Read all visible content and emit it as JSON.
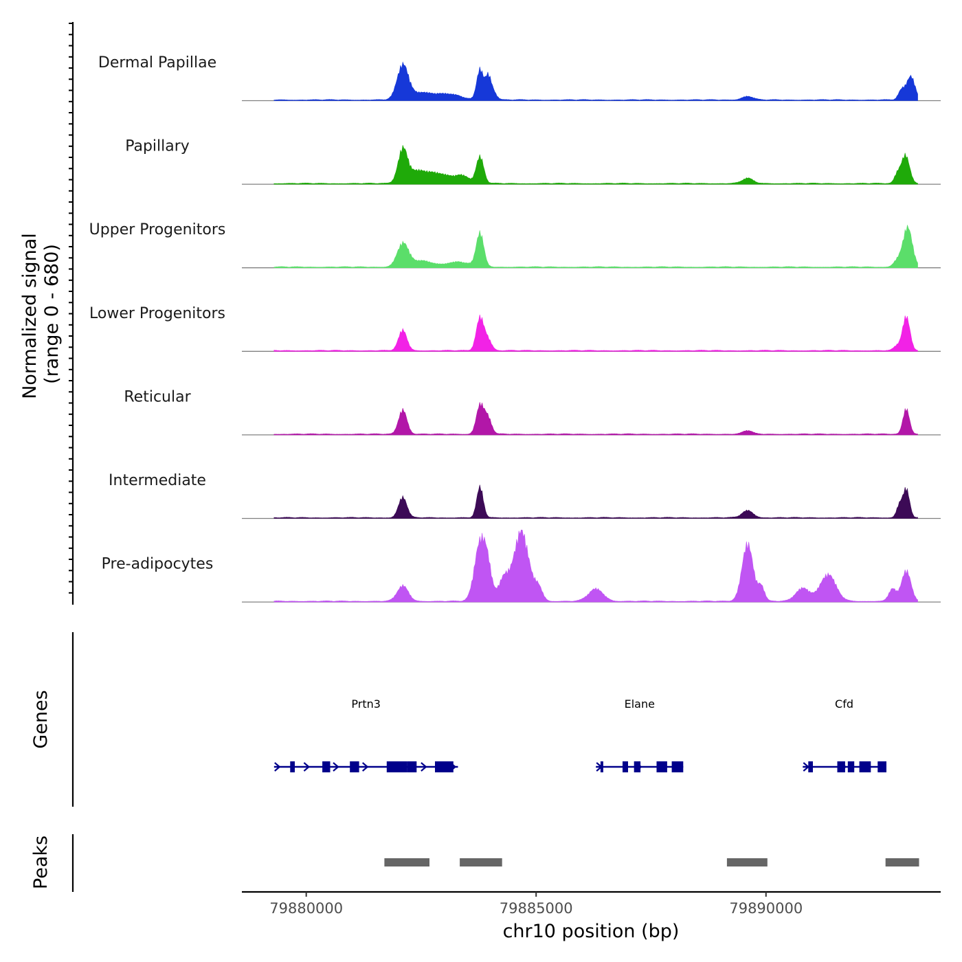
{
  "chart_data": {
    "type": "area",
    "chromosome": "chr10",
    "xlabel": "chr10 position (bp)",
    "ylabel_line1": "Normalized signal",
    "ylabel_line2": "(range 0 - 680)",
    "ylim": [
      0,
      680
    ],
    "xlim": [
      79878600,
      79893800
    ],
    "x_ticks": [
      79880000,
      79885000,
      79890000
    ],
    "x_tick_labels": [
      "79880000",
      "79885000",
      "79890000"
    ],
    "signal_range": [
      79879300,
      79893300
    ],
    "tracks": [
      {
        "name": "Dermal Papillae",
        "color": "#1638D8",
        "peaks": [
          [
            79882100,
            330,
            120
          ],
          [
            79882500,
            70,
            250
          ],
          [
            79883100,
            55,
            260
          ],
          [
            79883780,
            300,
            70
          ],
          [
            79883950,
            200,
            60
          ],
          [
            79884050,
            90,
            80
          ],
          [
            79889600,
            35,
            120
          ],
          [
            79892950,
            90,
            70
          ],
          [
            79893150,
            230,
            90
          ]
        ]
      },
      {
        "name": "Papillary",
        "color": "#1FAA09",
        "peaks": [
          [
            79882100,
            310,
            100
          ],
          [
            79882400,
            110,
            220
          ],
          [
            79882900,
            90,
            260
          ],
          [
            79883780,
            260,
            80
          ],
          [
            79883400,
            70,
            150
          ],
          [
            79889600,
            50,
            120
          ],
          [
            79893030,
            280,
            90
          ],
          [
            79892850,
            80,
            60
          ]
        ]
      },
      {
        "name": "Upper Progenitors",
        "color": "#5BDE6A",
        "peaks": [
          [
            79882100,
            220,
            120
          ],
          [
            79882500,
            60,
            250
          ],
          [
            79883780,
            330,
            80
          ],
          [
            79883300,
            50,
            250
          ],
          [
            79893080,
            390,
            100
          ],
          [
            79892850,
            60,
            80
          ]
        ]
      },
      {
        "name": "Lower Progenitors",
        "color": "#F222E6",
        "peaks": [
          [
            79882100,
            200,
            90
          ],
          [
            79883780,
            320,
            80
          ],
          [
            79883950,
            110,
            80
          ],
          [
            79893050,
            330,
            80
          ],
          [
            79892850,
            45,
            70
          ]
        ]
      },
      {
        "name": "Reticular",
        "color": "#B217A8",
        "peaks": [
          [
            79882100,
            240,
            90
          ],
          [
            79883780,
            280,
            80
          ],
          [
            79883950,
            160,
            80
          ],
          [
            79893050,
            250,
            70
          ],
          [
            79889600,
            35,
            100
          ]
        ]
      },
      {
        "name": "Intermediate",
        "color": "#3C0A56",
        "peaks": [
          [
            79882100,
            200,
            90
          ],
          [
            79883780,
            300,
            70
          ],
          [
            79889600,
            70,
            120
          ],
          [
            79893050,
            280,
            70
          ],
          [
            79892900,
            120,
            60
          ]
        ]
      },
      {
        "name": "Pre-adipocytes",
        "color": "#C055F3",
        "peaks": [
          [
            79882100,
            150,
            120
          ],
          [
            79883780,
            560,
            120
          ],
          [
            79883950,
            270,
            90
          ],
          [
            79884300,
            220,
            120
          ],
          [
            79884680,
            680,
            160
          ],
          [
            79885050,
            130,
            90
          ],
          [
            79886300,
            120,
            160
          ],
          [
            79889600,
            560,
            120
          ],
          [
            79889900,
            140,
            70
          ],
          [
            79890800,
            130,
            150
          ],
          [
            79891350,
            260,
            170
          ],
          [
            79893050,
            300,
            100
          ],
          [
            79892750,
            120,
            80
          ]
        ]
      }
    ],
    "genes": [
      {
        "name": "Prtn3",
        "start": 79879300,
        "end": 79883300,
        "strand": "+",
        "exons": [
          [
            79879650,
            79879750
          ],
          [
            79880350,
            79880520
          ],
          [
            79880950,
            79881150
          ],
          [
            79881750,
            79882200
          ],
          [
            79882200,
            79882400
          ],
          [
            79882800,
            79883200
          ]
        ]
      },
      {
        "name": "Elane",
        "start": 79886300,
        "end": 79888200,
        "strand": "+",
        "exons": [
          [
            79886400,
            79886450
          ],
          [
            79886880,
            79887000
          ],
          [
            79887130,
            79887270
          ],
          [
            79887620,
            79887850
          ],
          [
            79887950,
            79888200
          ]
        ]
      },
      {
        "name": "Cfd",
        "start": 79890800,
        "end": 79892600,
        "strand": "+",
        "exons": [
          [
            79890920,
            79891020
          ],
          [
            79891550,
            79891720
          ],
          [
            79891780,
            79891920
          ],
          [
            79892030,
            79892280
          ],
          [
            79892430,
            79892620
          ]
        ]
      }
    ],
    "peak_regions": [
      [
        79881700,
        79882680
      ],
      [
        79883340,
        79884260
      ],
      [
        79889150,
        79890030
      ],
      [
        79892600,
        79893330
      ]
    ],
    "panel_labels": {
      "genes": "Genes",
      "peaks": "Peaks"
    }
  },
  "colors": {
    "gene": "#00008B",
    "peak": "#666666",
    "baseline": "#808080"
  }
}
